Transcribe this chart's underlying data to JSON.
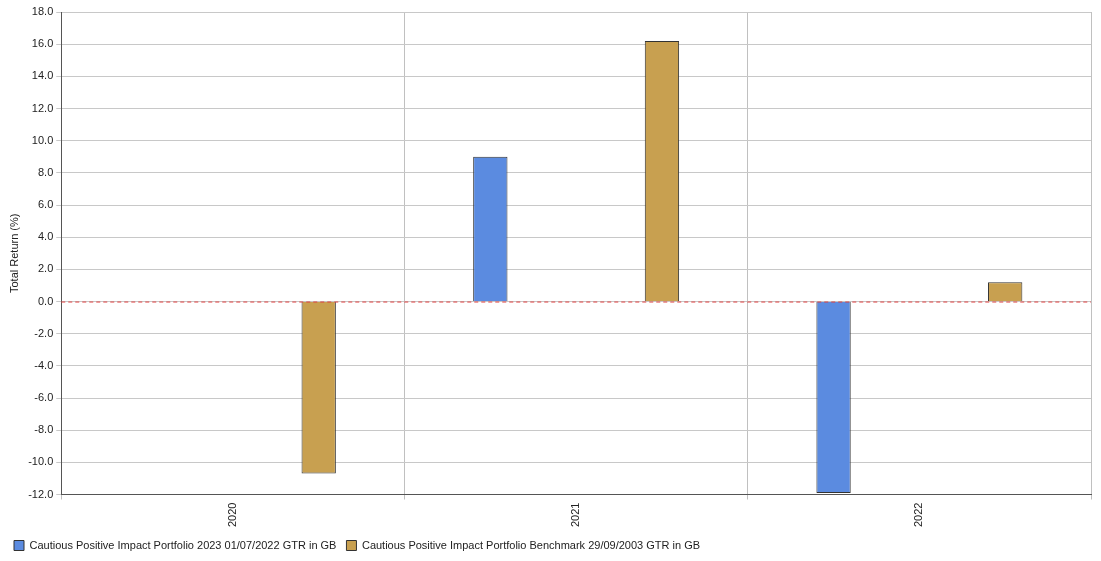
{
  "chart_data": {
    "type": "bar",
    "ylabel": "Total Return (%)",
    "categories": [
      "2020",
      "2021",
      "2022"
    ],
    "series": [
      {
        "name": "Cautious Positive Impact Portfolio 2023 01/07/2022 GTR in GB",
        "color": "#5b8be0",
        "values": [
          null,
          9.0,
          -11.9
        ]
      },
      {
        "name": "Cautious Positive Impact Portfolio Benchmark 29/09/2003 GTR in GB",
        "color": "#c8a050",
        "values": [
          -10.7,
          16.2,
          1.2
        ]
      }
    ],
    "ylim": [
      -12,
      18
    ],
    "yticks": [
      {
        "value": -12,
        "label": "-12.0"
      },
      {
        "value": -10,
        "label": "-10.0"
      },
      {
        "value": -8,
        "label": "-8.0"
      },
      {
        "value": -6,
        "label": "-6.0"
      },
      {
        "value": -4,
        "label": "-4.0"
      },
      {
        "value": -2,
        "label": "-2.0"
      },
      {
        "value": 0,
        "label": "0.0"
      },
      {
        "value": 2,
        "label": "2.0"
      },
      {
        "value": 4,
        "label": "4.0"
      },
      {
        "value": 6,
        "label": "6.0"
      },
      {
        "value": 8,
        "label": "8.0"
      },
      {
        "value": 10,
        "label": "10.0"
      },
      {
        "value": 12,
        "label": "12.0"
      },
      {
        "value": 14,
        "label": "14.0"
      },
      {
        "value": 16,
        "label": "16.0"
      },
      {
        "value": 18,
        "label": "18.0"
      }
    ],
    "ref_lines": [
      {
        "axis": "y",
        "value": 0,
        "color": "#e04040",
        "line_style": "dashed"
      }
    ],
    "grid": true,
    "legend": "bottom left"
  }
}
